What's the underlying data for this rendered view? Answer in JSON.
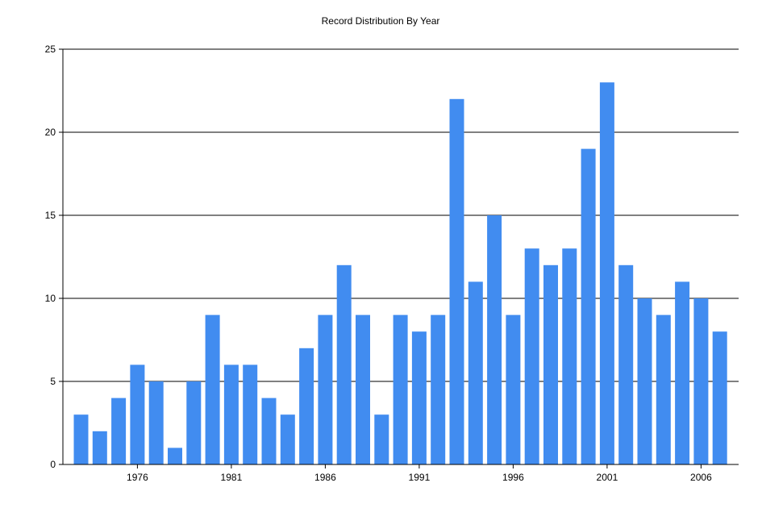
{
  "chart_data": {
    "type": "bar",
    "title": "Record Distribution By Year",
    "xlabel": "",
    "ylabel": "",
    "x": [
      1973,
      1974,
      1975,
      1976,
      1977,
      1978,
      1979,
      1980,
      1981,
      1982,
      1983,
      1984,
      1985,
      1986,
      1987,
      1988,
      1989,
      1990,
      1991,
      1992,
      1993,
      1994,
      1995,
      1996,
      1997,
      1998,
      1999,
      2000,
      2001,
      2002,
      2003,
      2004,
      2005,
      2006,
      2007
    ],
    "values": [
      3,
      2,
      4,
      6,
      5,
      1,
      5,
      9,
      6,
      6,
      4,
      3,
      7,
      9,
      12,
      9,
      3,
      9,
      8,
      9,
      22,
      11,
      15,
      9,
      13,
      12,
      13,
      19,
      23,
      12,
      10,
      9,
      11,
      10,
      8
    ],
    "ylim": [
      0,
      25
    ],
    "yticks": [
      0,
      5,
      10,
      15,
      20,
      25
    ],
    "xticks": [
      1976,
      1981,
      1986,
      1991,
      1996,
      2001,
      2006
    ],
    "grid": "horizontal",
    "legend": "none",
    "bar_color": "#418CF0",
    "grid_color": "#000000",
    "axis_color": "#000000"
  }
}
